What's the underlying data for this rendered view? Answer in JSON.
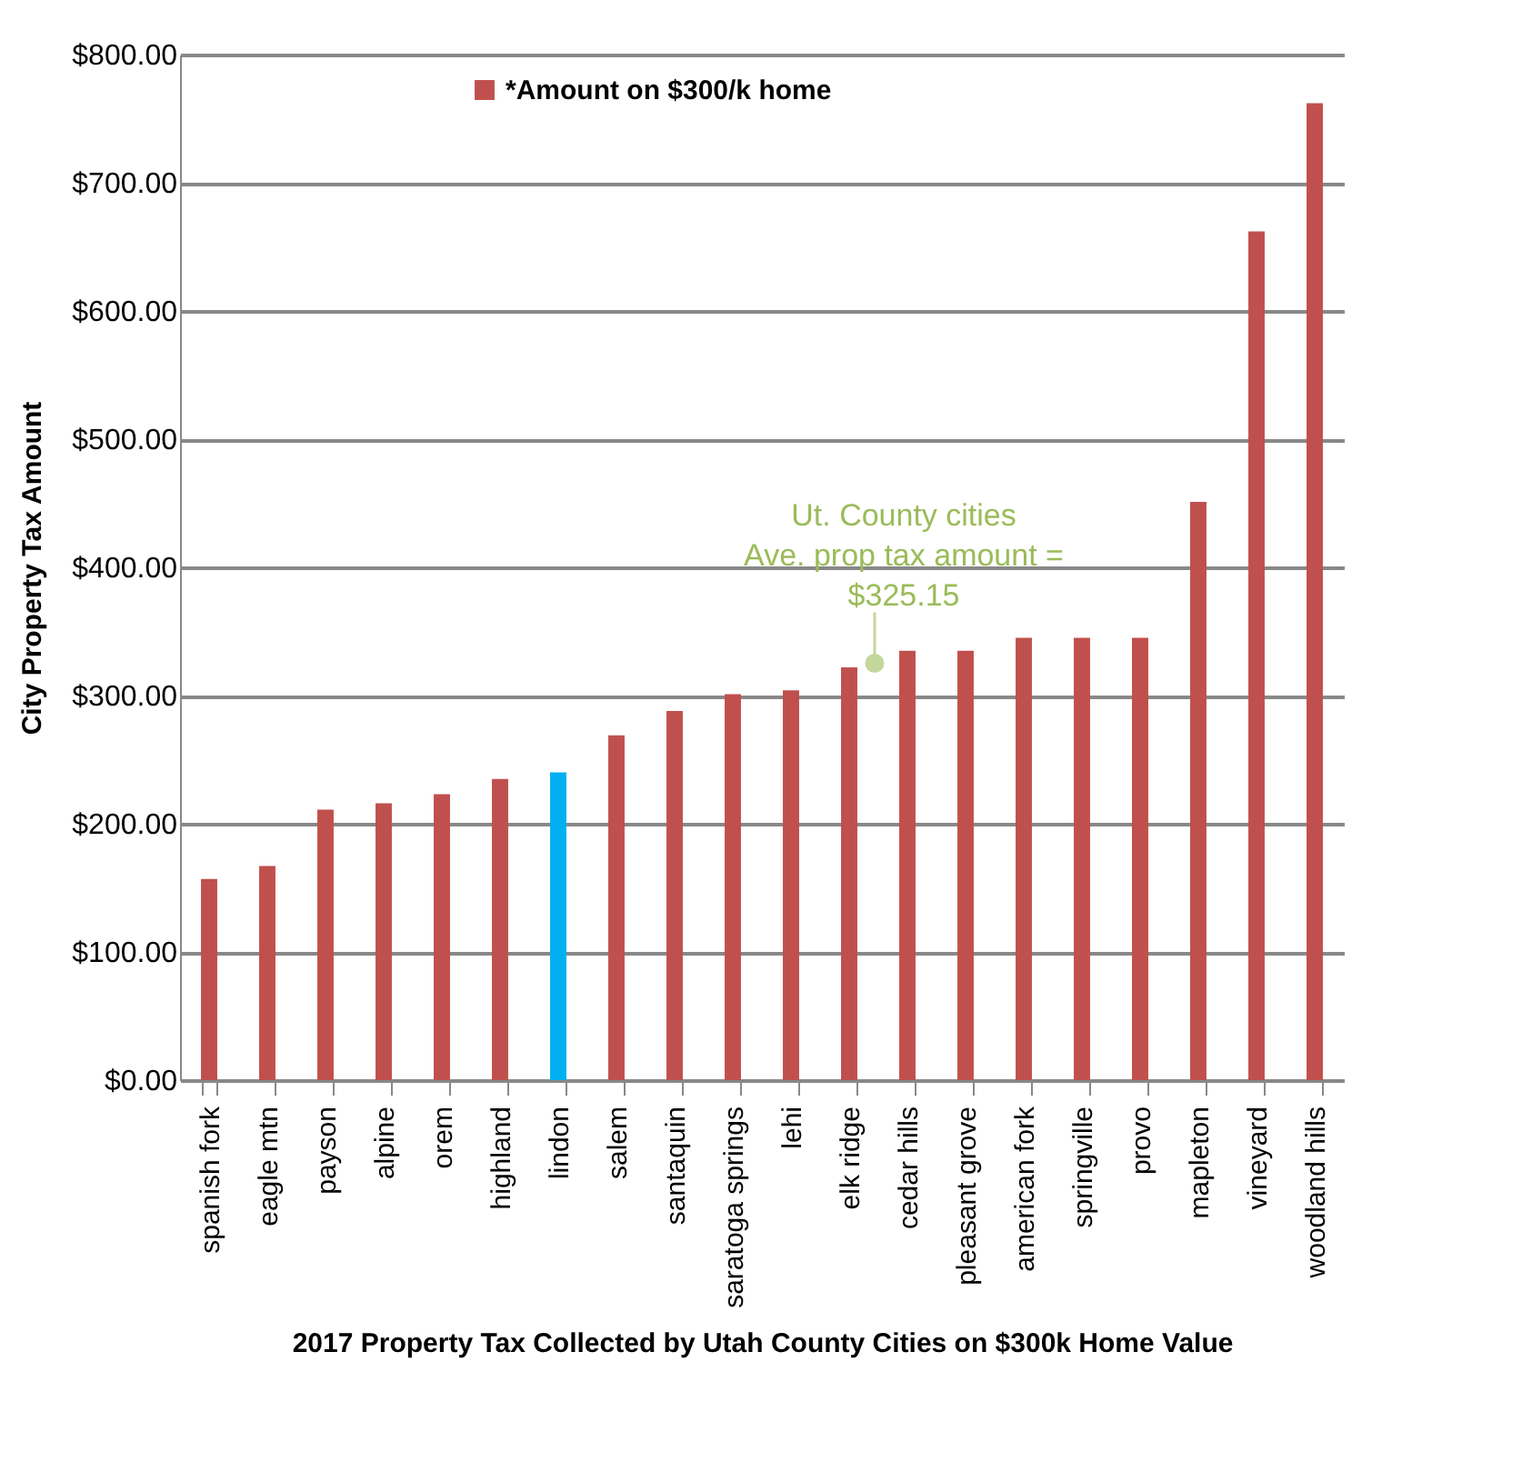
{
  "chart_data": {
    "type": "bar",
    "xlabel": "2017 Property Tax Collected by Utah County Cities on $300k Home Value",
    "ylabel": "City Property Tax Amount",
    "categories": [
      "spanish fork",
      "eagle mtn",
      "payson",
      "alpine",
      "orem",
      "highland",
      "lindon",
      "salem",
      "santaquin",
      "saratoga springs",
      "lehi",
      "elk ridge",
      "cedar hills",
      "pleasant grove",
      "american fork",
      "springville",
      "provo",
      "mapleton",
      "vineyard",
      "woodland hills"
    ],
    "series": [
      {
        "name": "*Amount on $300/k home",
        "color": "#c0504d",
        "values": [
          157,
          167,
          211,
          216,
          223,
          235,
          240,
          269,
          288,
          301,
          304,
          322,
          335,
          335,
          345,
          345,
          345,
          451,
          662,
          762
        ],
        "colors": [
          "#c0504d",
          "#c0504d",
          "#c0504d",
          "#c0504d",
          "#c0504d",
          "#c0504d",
          "#00b0f0",
          "#c0504d",
          "#c0504d",
          "#c0504d",
          "#c0504d",
          "#c0504d",
          "#c0504d",
          "#c0504d",
          "#c0504d",
          "#c0504d",
          "#c0504d",
          "#c0504d",
          "#c0504d",
          "#c0504d"
        ]
      }
    ],
    "ylim": [
      0,
      800
    ],
    "yticks": [
      {
        "value": 0,
        "label": "$0.00"
      },
      {
        "value": 100,
        "label": "$100.00"
      },
      {
        "value": 200,
        "label": "$200.00"
      },
      {
        "value": 300,
        "label": "$300.00"
      },
      {
        "value": 400,
        "label": "$400.00"
      },
      {
        "value": 500,
        "label": "$500.00"
      },
      {
        "value": 600,
        "label": "$600.00"
      },
      {
        "value": 700,
        "label": "$700.00"
      },
      {
        "value": 800,
        "label": "$800.00"
      }
    ],
    "grid": "y",
    "legend": "top",
    "annotations": [
      {
        "text": "Ut. County cities\nAve. prop tax amount =\n$325.15",
        "x": "elk ridge",
        "y": 325.15
      }
    ]
  }
}
